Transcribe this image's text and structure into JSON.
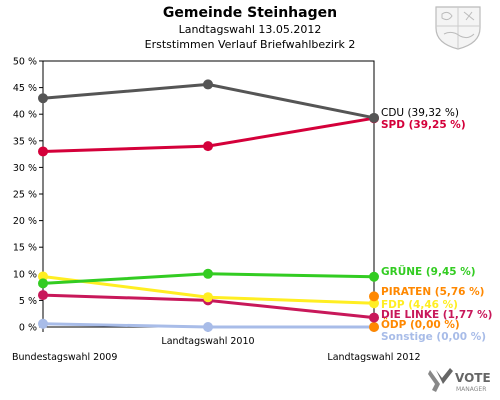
{
  "header": {
    "title": "Gemeinde Steinhagen",
    "subtitle": "Landtagswahl 13.05.2012",
    "subtitle2": "Erststimmen Verlauf Briefwahlbezirk 2"
  },
  "logo": {
    "text1": "VOTE",
    "text2": "MANAGER"
  },
  "chart_data": {
    "type": "line",
    "title": "Gemeinde Steinhagen",
    "subtitle": "Landtagswahl 13.05.2012 / Erststimmen Verlauf Briefwahlbezirk 2",
    "categories": [
      "Bundestagswahl 2009",
      "Landtagswahl 2010",
      "Landtagswahl 2012"
    ],
    "ylim": [
      0,
      50
    ],
    "yticks": [
      "0 %",
      "5 %",
      "10 %",
      "15 %",
      "20 %",
      "25 %",
      "30 %",
      "35 %",
      "40 %",
      "45 %",
      "50 %"
    ],
    "grid": false,
    "series": [
      {
        "name": "CDU",
        "label": "CDU (39,32 %)",
        "color": "#555555",
        "label_color": "#000000",
        "values": [
          43.0,
          45.6,
          39.32
        ]
      },
      {
        "name": "SPD",
        "label": "SPD (39,25 %)",
        "color": "#d4003a",
        "label_color": "#d4003a",
        "values": [
          33.0,
          34.0,
          39.25
        ]
      },
      {
        "name": "GRÜNE",
        "label": "GRÜNE (9,45 %)",
        "color": "#33cc22",
        "label_color": "#33cc22",
        "values": [
          8.2,
          10.0,
          9.45
        ]
      },
      {
        "name": "PIRATEN",
        "label": "PIRATEN (5,76 %)",
        "color": "#ff8800",
        "label_color": "#ff8800",
        "values": [
          null,
          null,
          5.76
        ]
      },
      {
        "name": "FDP",
        "label": "FDP (4,46 %)",
        "color": "#ffee22",
        "label_color": "#ffee22",
        "values": [
          9.5,
          5.6,
          4.46
        ]
      },
      {
        "name": "DIE LINKE",
        "label": "DIE LINKE (1,77 %)",
        "color": "#c8185a",
        "label_color": "#c8185a",
        "values": [
          6.0,
          5.0,
          1.77
        ]
      },
      {
        "name": "ÖDP",
        "label": "ÖDP (0,00 %)",
        "color": "#ff8800",
        "label_color": "#ff8800",
        "values": [
          null,
          null,
          0.0
        ]
      },
      {
        "name": "Sonstige",
        "label": "Sonstige (0,00 %)",
        "color": "#a8bce8",
        "label_color": "#a8bce8",
        "values": [
          0.6,
          0.0,
          0.0
        ]
      }
    ]
  }
}
